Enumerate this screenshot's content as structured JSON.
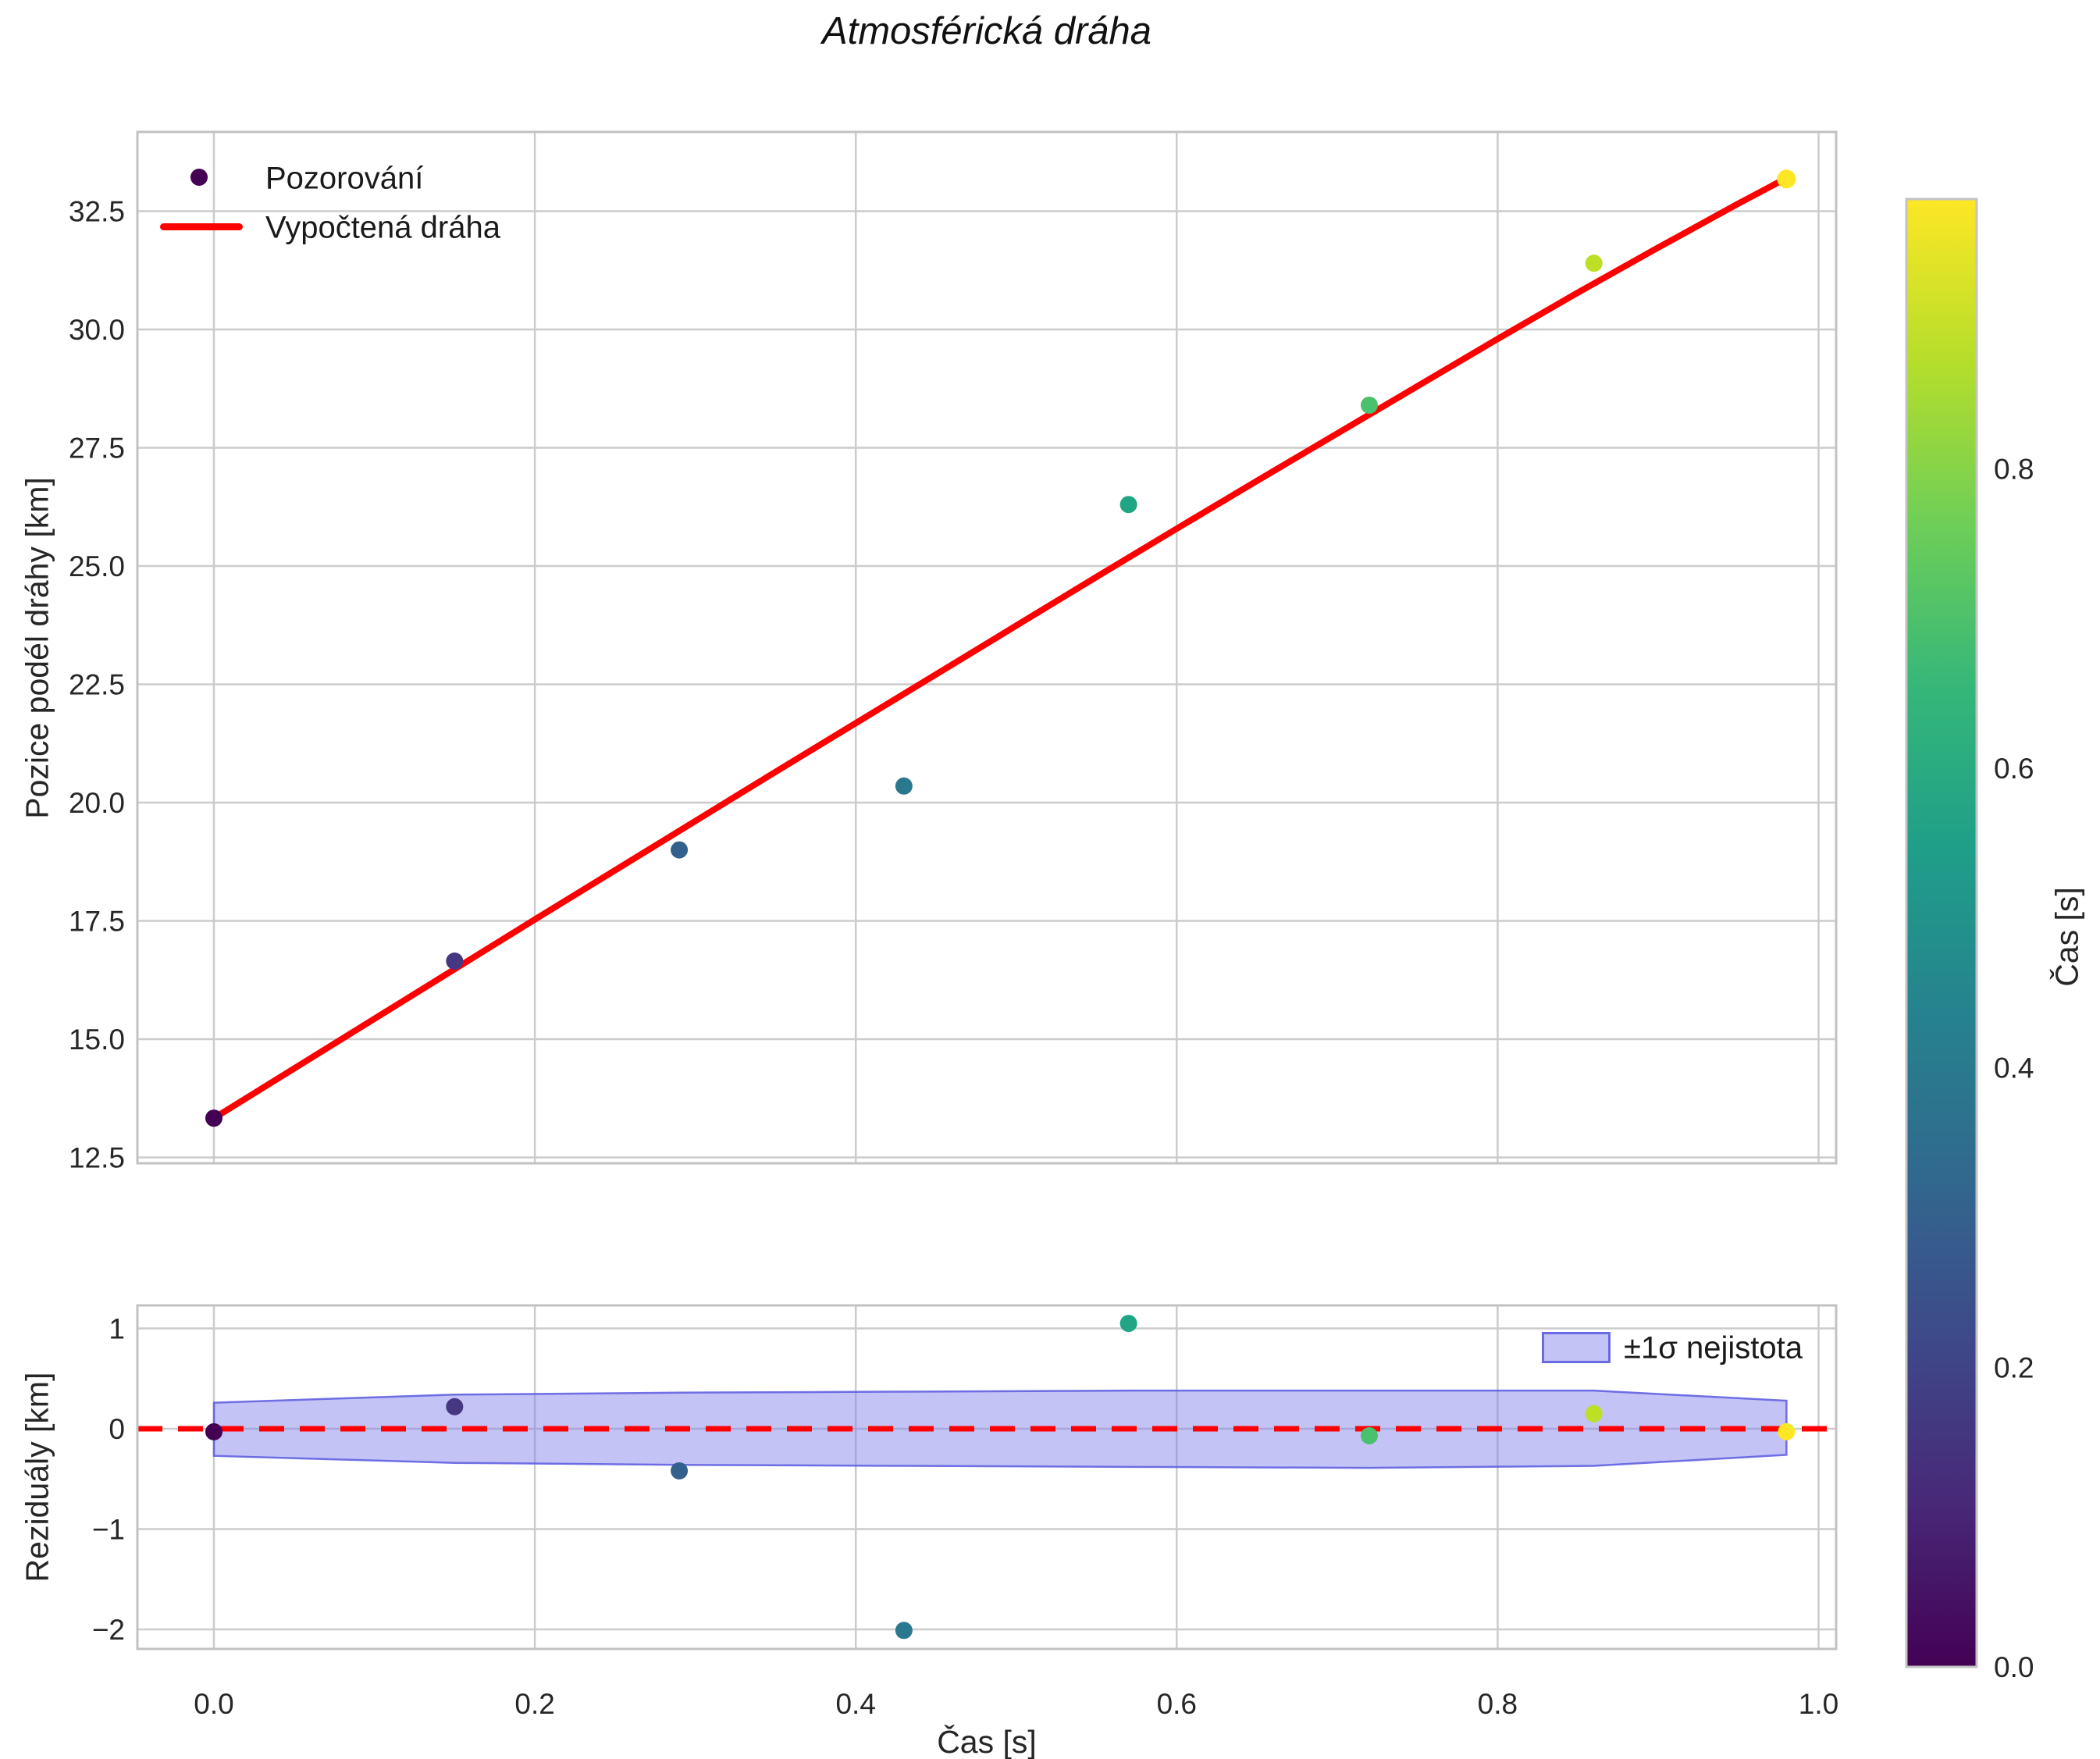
{
  "chart_data": {
    "type": "scatter+line",
    "title": "Atmosférická dráha",
    "xlabel": "Čas [s]",
    "xticks": [
      0.0,
      0.2,
      0.4,
      0.6,
      0.8,
      1.0
    ],
    "xtick_labels": [
      "0.0",
      "0.2",
      "0.4",
      "0.6",
      "0.8",
      "1.0"
    ],
    "xlim": [
      -0.048,
      1.012
    ],
    "grid": true,
    "panels": [
      {
        "name": "trajectory",
        "ylabel": "Pozice podél dráhy [km]",
        "ylim": [
          12.38,
          34.17
        ],
        "yticks": [
          12.5,
          15.0,
          17.5,
          20.0,
          22.5,
          25.0,
          27.5,
          30.0,
          32.5
        ],
        "ytick_labels": [
          "12.5",
          "15.0",
          "17.5",
          "20.0",
          "22.5",
          "25.0",
          "27.5",
          "30.0",
          "32.5"
        ],
        "legend": {
          "observations_label": "Pozorování",
          "fit_label": "Vypočtená dráha",
          "position": "upper left"
        },
        "observations": {
          "t_s": [
            0.0,
            0.15,
            0.29,
            0.43,
            0.57,
            0.72,
            0.86,
            0.98
          ],
          "position_km": [
            13.33,
            16.65,
            19.0,
            20.35,
            26.3,
            28.4,
            31.4,
            33.18
          ],
          "colors": [
            "#440154",
            "#453781",
            "#34608d",
            "#2a788e",
            "#21a685",
            "#4ac16d",
            "#bddf26",
            "#fde725"
          ]
        },
        "fit_line": {
          "color": "#ff0000",
          "t_s": [
            0.0,
            0.05,
            0.1,
            0.15,
            0.2,
            0.25,
            0.3,
            0.35,
            0.4,
            0.45,
            0.5,
            0.55,
            0.6,
            0.65,
            0.7,
            0.75,
            0.8,
            0.85,
            0.9,
            0.95,
            0.98
          ],
          "position_km": [
            13.33,
            14.38,
            15.43,
            16.48,
            17.53,
            18.57,
            19.61,
            20.65,
            21.68,
            22.71,
            23.74,
            24.77,
            25.79,
            26.8,
            27.8,
            28.8,
            29.8,
            30.78,
            31.73,
            32.66,
            33.2
          ]
        }
      },
      {
        "name": "residuals",
        "ylabel": "Reziduály [km]",
        "ylim": [
          -2.19,
          1.23
        ],
        "yticks": [
          1,
          0,
          -1,
          -2
        ],
        "ytick_labels": [
          "1",
          "0",
          "−1",
          "−2"
        ],
        "zero_line": {
          "y": 0,
          "color": "#ff0000",
          "style": "dashed"
        },
        "legend": {
          "band_label": "±1σ nejistota",
          "position": "upper right"
        },
        "band": {
          "t_s": [
            0.0,
            0.15,
            0.29,
            0.43,
            0.57,
            0.72,
            0.86,
            0.98
          ],
          "upper_km": [
            0.26,
            0.34,
            0.36,
            0.37,
            0.38,
            0.38,
            0.38,
            0.28
          ],
          "lower_km": [
            -0.27,
            -0.34,
            -0.36,
            -0.37,
            -0.38,
            -0.39,
            -0.37,
            -0.26
          ],
          "fill": "#7b7bea",
          "fill_opacity": 0.45,
          "edge": "#5a5ae0"
        },
        "points": {
          "t_s": [
            0.0,
            0.15,
            0.29,
            0.43,
            0.57,
            0.72,
            0.86,
            0.98
          ],
          "residual_km": [
            -0.03,
            0.22,
            -0.42,
            -2.01,
            1.05,
            -0.07,
            0.15,
            -0.03
          ],
          "colors": [
            "#440154",
            "#453781",
            "#34608d",
            "#2a788e",
            "#21a685",
            "#4ac16d",
            "#bddf26",
            "#fde725"
          ]
        }
      }
    ],
    "colorbar": {
      "label": "Čas [s]",
      "colormap": "viridis",
      "vmin": 0.0,
      "vmax": 0.98,
      "ticks": [
        0.0,
        0.2,
        0.4,
        0.6,
        0.8
      ],
      "tick_labels": [
        "0.0",
        "0.2",
        "0.4",
        "0.6",
        "0.8"
      ],
      "gradient_stops": [
        "#440154",
        "#482878",
        "#3e4989",
        "#31688e",
        "#26828e",
        "#1f9e89",
        "#35b779",
        "#6ece58",
        "#b5de2b",
        "#fde725"
      ]
    }
  },
  "style": {
    "background": "#ffffff",
    "grid_color": "#cccccc",
    "spine_color": "#c2c2c2",
    "text_color": "#262626",
    "accent_red": "#ff0000"
  }
}
